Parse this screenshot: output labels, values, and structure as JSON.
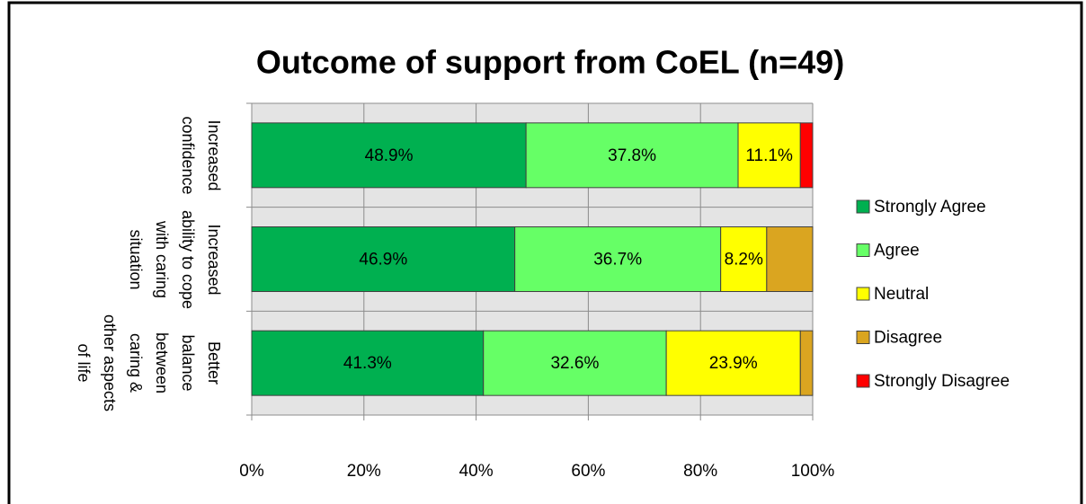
{
  "chart_data": {
    "type": "stacked_bar_horizontal",
    "title": "Outcome of support  from CoEL (n=49)",
    "categories": [
      "Increased confidence",
      "Increased ability to cope with caring situation",
      "Better balance between caring & other aspects of life"
    ],
    "series": [
      {
        "name": "Strongly Agree",
        "color": "#00b050",
        "values": [
          48.9,
          46.9,
          41.3
        ],
        "value_labels": [
          "48.9%",
          "46.9%",
          "41.3%"
        ]
      },
      {
        "name": "Agree",
        "color": "#66ff66",
        "values": [
          37.8,
          36.7,
          32.6
        ],
        "value_labels": [
          "37.8%",
          "36.7%",
          "32.6%"
        ]
      },
      {
        "name": "Neutral",
        "color": "#ffff00",
        "values": [
          11.1,
          8.2,
          23.9
        ],
        "value_labels": [
          "11.1%",
          "8.2%",
          "23.9%"
        ]
      },
      {
        "name": "Disagree",
        "color": "#daa520",
        "values": [
          0,
          8.2,
          2.2
        ],
        "value_labels": [
          null,
          null,
          null
        ]
      },
      {
        "name": "Strongly Disagree",
        "color": "#ff0000",
        "values": [
          2.2,
          0,
          0
        ],
        "value_labels": [
          null,
          null,
          null
        ]
      }
    ],
    "xlim": [
      0,
      100
    ],
    "xticks": [
      {
        "value": 0,
        "label": "0%"
      },
      {
        "value": 20,
        "label": "20%"
      },
      {
        "value": 40,
        "label": "40%"
      },
      {
        "value": 60,
        "label": "60%"
      },
      {
        "value": 80,
        "label": "80%"
      },
      {
        "value": 100,
        "label": "100%"
      }
    ],
    "grid": true,
    "legend": "right"
  }
}
